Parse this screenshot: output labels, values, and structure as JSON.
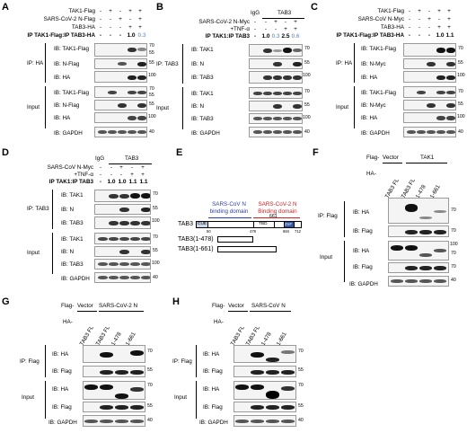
{
  "panels": {
    "A": {
      "label": "A",
      "conditions": [
        "TAK1-Flag",
        "SARS-CoV-2 N-Flag",
        "TAB3-HA"
      ],
      "ratio_label": "IP TAK1-Flag:IP TAB3-HA",
      "ratio_values": [
        "-",
        "-",
        "-",
        "1.0",
        "0.3"
      ],
      "symbols": [
        [
          "-",
          "+",
          "-",
          "+",
          "+"
        ],
        [
          "-",
          "-",
          "+",
          "-",
          "+"
        ],
        [
          "-",
          "-",
          "-",
          "+",
          "+"
        ]
      ],
      "ip_label": "IP: HA",
      "input_label": "Input",
      "blots": [
        "IB: TAK1-Flag",
        "IB: N-Flag",
        "IB: HA",
        "IB: TAK1-Flag",
        "IB: N-Flag",
        "IB: HA",
        "IB: GAPDH"
      ],
      "mw": [
        [
          "70",
          "55"
        ],
        [
          "55"
        ],
        [
          "100"
        ],
        [
          "70",
          "55"
        ],
        [
          "55"
        ],
        [
          "100"
        ],
        [
          "40"
        ]
      ]
    },
    "B": {
      "label": "B",
      "conditions": [
        "SARS-CoV-2 N-Myc",
        "+TNF-α"
      ],
      "igg": "IgG",
      "tab3": "TAB3",
      "ratio_label": "IP TAK1:IP TAB3",
      "ratio_values": [
        "-",
        "1.0",
        "0.3",
        "2.5",
        "0.6"
      ],
      "symbols": [
        [
          "-",
          "-",
          "+",
          "-",
          "+"
        ],
        [
          "-",
          "-",
          "-",
          "+",
          "+"
        ]
      ],
      "ip_label": "IP: TAB3",
      "input_label": "Input",
      "blots": [
        "IB: TAK1",
        "IB: N",
        "IB: TAB3",
        "IB: TAK1",
        "IB: N",
        "IB: TAB3",
        "IB: GAPDH"
      ],
      "mw": [
        [
          "70"
        ],
        [
          "55"
        ],
        [
          "100"
        ],
        [
          "70"
        ],
        [
          "55"
        ],
        [
          "100"
        ],
        [
          "40"
        ]
      ]
    },
    "C": {
      "label": "C",
      "conditions": [
        "TAK1-Flag",
        "SARS-CoV N-Myc",
        "TAB3-HA"
      ],
      "ratio_label": "IP TAK1-Flag:IP TAB3-HA",
      "ratio_values": [
        "-",
        "-",
        "-",
        "1.0",
        "1.1"
      ],
      "symbols": [
        [
          "-",
          "+",
          "-",
          "+",
          "+"
        ],
        [
          "-",
          "-",
          "+",
          "-",
          "+"
        ],
        [
          "-",
          "-",
          "-",
          "+",
          "+"
        ]
      ],
      "ip_label": "IP: HA",
      "input_label": "Input",
      "blots": [
        "IB: TAK1-Flag",
        "IB: N-Myc",
        "IB: HA",
        "IB: TAK1-Flag",
        "IB: N-Myc",
        "IB: HA",
        "IB: GAPDH"
      ],
      "mw": [
        [
          "70"
        ],
        [
          "55"
        ],
        [
          "100"
        ],
        [
          "70"
        ],
        [
          "55"
        ],
        [
          "100"
        ],
        [
          "40"
        ]
      ]
    },
    "D": {
      "label": "D",
      "conditions": [
        "SARS-CoV N-Myc",
        "+TNF-α"
      ],
      "igg": "IgG",
      "tab3": "TAB3",
      "ratio_label": "IP TAK1:IP TAB3",
      "ratio_values": [
        "-",
        "1.0",
        "1.0",
        "1.1",
        "1.1"
      ],
      "symbols": [
        [
          "-",
          "-",
          "+",
          "-",
          "+"
        ],
        [
          "-",
          "-",
          "-",
          "+",
          "+"
        ]
      ],
      "ip_label": "IP: TAB3",
      "input_label": "Input",
      "blots": [
        "IB: TAK1",
        "IB: N",
        "IB: TAB3",
        "IB: TAK1",
        "IB: N",
        "IB: TAB3",
        "IB: GAPDH"
      ],
      "mw": [
        [
          "70"
        ],
        [
          "55"
        ],
        [
          "100"
        ],
        [
          "70"
        ],
        [
          "55"
        ],
        [
          "100"
        ],
        [
          "40"
        ]
      ]
    },
    "E": {
      "label": "E",
      "cov_domain": "SARS-CoV N binding domain",
      "cov2_domain": "SARS-CoV-2 N Binding domain",
      "constructs": [
        "TAB3",
        "TAB3(1-478)",
        "TAB3(1-661)"
      ],
      "domains": [
        "CUE",
        "TBD",
        "ZnF"
      ],
      "positions": [
        "50",
        "478",
        "661",
        "684",
        "712"
      ]
    },
    "F": {
      "label": "F",
      "flag_label": "Flag-",
      "vector": "Vector",
      "tak1": "TAK1",
      "ha": "HA-",
      "lanes": [
        "TAB3 FL",
        "TAB3 FL",
        "1-478",
        "1-661"
      ],
      "ip_label": "IP: Flag",
      "input_label": "Input",
      "blots": [
        "IB: HA",
        "IB: Flag",
        "IB: HA",
        "IB: Flag",
        "IB: GAPDH"
      ],
      "mw": [
        [
          "70"
        ],
        [
          "70"
        ],
        [
          "100",
          "70"
        ],
        [
          "70"
        ],
        [
          "40"
        ]
      ]
    },
    "G": {
      "label": "G",
      "flag_label": "Flag-",
      "vector": "Vector",
      "virus": "SARS-CoV-2 N",
      "ha": "HA-",
      "lanes": [
        "TAB3 FL",
        "TAB3 FL",
        "1-478",
        "1-661"
      ],
      "ip_label": "IP: Flag",
      "input_label": "Input",
      "blots": [
        "IB: HA",
        "IB: Flag",
        "IB: HA",
        "IB: Flag",
        "IB: GAPDH"
      ],
      "mw": [
        [
          "70"
        ],
        [
          "55"
        ],
        [
          "70"
        ],
        [
          "55"
        ],
        [
          "40"
        ]
      ]
    },
    "H": {
      "label": "H",
      "flag_label": "Flag-",
      "vector": "Vector",
      "virus": "SARS-CoV N",
      "ha": "HA-",
      "lanes": [
        "TAB3 FL",
        "TAB3 FL",
        "1-478",
        "1-661"
      ],
      "ip_label": "IP: Flag",
      "input_label": "Input",
      "blots": [
        "IB: HA",
        "IB: Flag",
        "IB: HA",
        "IB: Flag",
        "IB: GAPDH"
      ],
      "mw": [
        [
          "70"
        ],
        [
          "55"
        ],
        [
          "70"
        ],
        [
          "55"
        ],
        [
          "40"
        ]
      ]
    }
  },
  "colors": {
    "cov_domain": "#2a3db8",
    "cov2_domain": "#d42020",
    "ratio_dim": "#8aa6cc",
    "znf": "#2f56a8"
  }
}
